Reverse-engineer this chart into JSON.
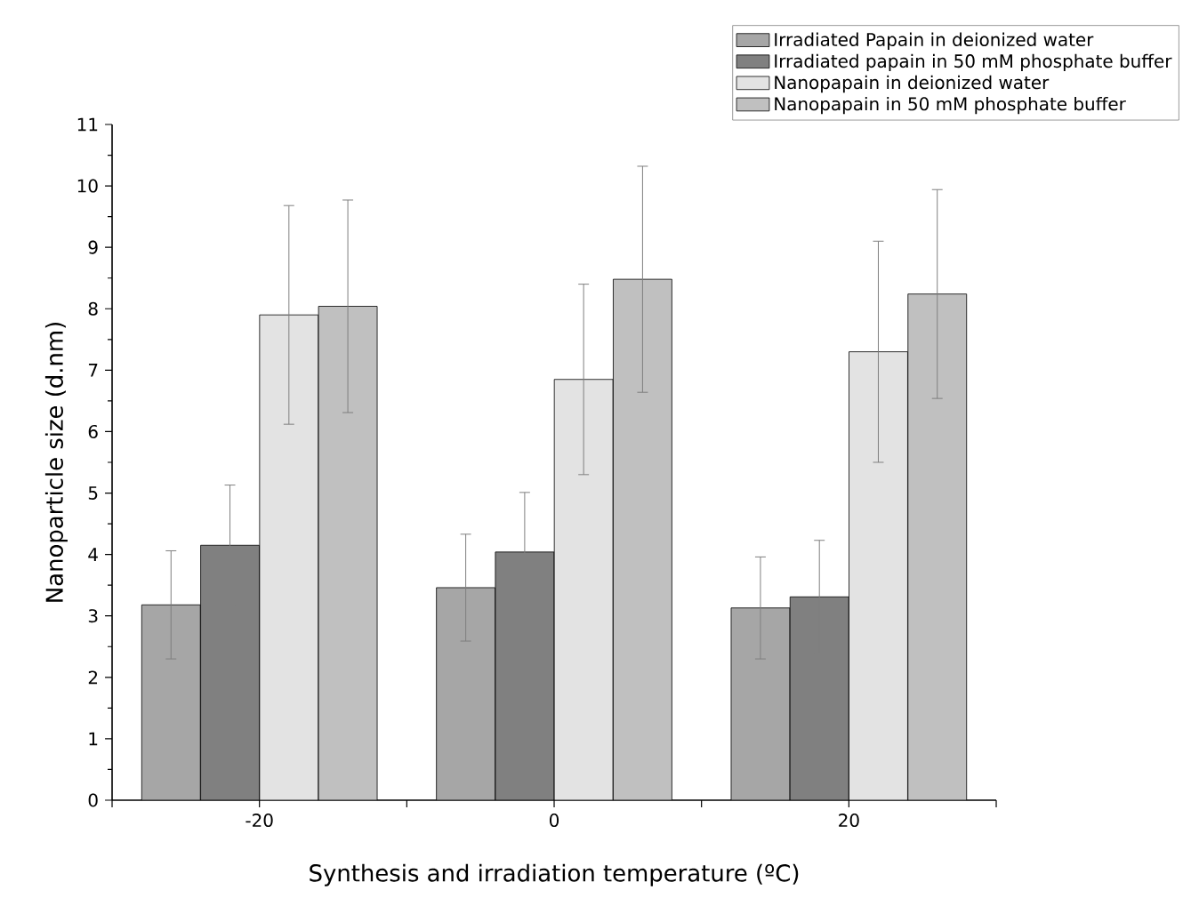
{
  "chart_data": {
    "type": "bar",
    "xlabel": "Synthesis and irradiation temperature (ºC)",
    "ylabel": "Nanoparticle size (d.nm)",
    "categories": [
      "-20",
      "0",
      "20"
    ],
    "ylim": [
      0,
      11
    ],
    "yticks": [
      0,
      1,
      2,
      3,
      4,
      5,
      6,
      7,
      8,
      9,
      10,
      11
    ],
    "legend": "top right",
    "grid": false,
    "series": [
      {
        "name": "Irradiated Papain in deionized water",
        "color": "#a6a6a6",
        "values": [
          3.18,
          3.46,
          3.13
        ],
        "errors": [
          0.88,
          0.87,
          0.83
        ]
      },
      {
        "name": "Irradiated papain in 50 mM phosphate buffer",
        "color": "#808080",
        "values": [
          4.15,
          4.04,
          3.31
        ],
        "errors": [
          0.98,
          0.97,
          0.92
        ]
      },
      {
        "name": "Nanopapain in deionized water",
        "color": "#e3e3e3",
        "values": [
          7.9,
          6.85,
          7.3
        ],
        "errors": [
          1.78,
          1.55,
          1.8
        ]
      },
      {
        "name": "Nanopapain in 50 mM phosphate buffer",
        "color": "#c0c0c0",
        "values": [
          8.04,
          8.48,
          8.24
        ],
        "errors": [
          1.73,
          1.84,
          1.7
        ]
      }
    ]
  }
}
